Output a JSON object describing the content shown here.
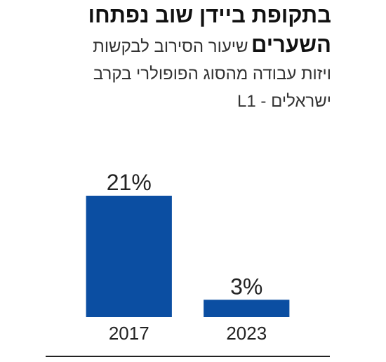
{
  "chart_data": {
    "type": "bar",
    "title": "בתקופת ביידן שוב נפתחו השערים",
    "subtitle": "שיעור הסירוב לבקשות ויזות עבודה מהסוג הפופולרי בקרב ישראלים - L1",
    "categories": [
      "2017",
      "2023"
    ],
    "values": [
      21,
      3
    ],
    "value_labels": [
      "21%",
      "3%"
    ],
    "color": "#0b4ea2",
    "ylim": [
      0,
      25
    ],
    "grid": false
  }
}
